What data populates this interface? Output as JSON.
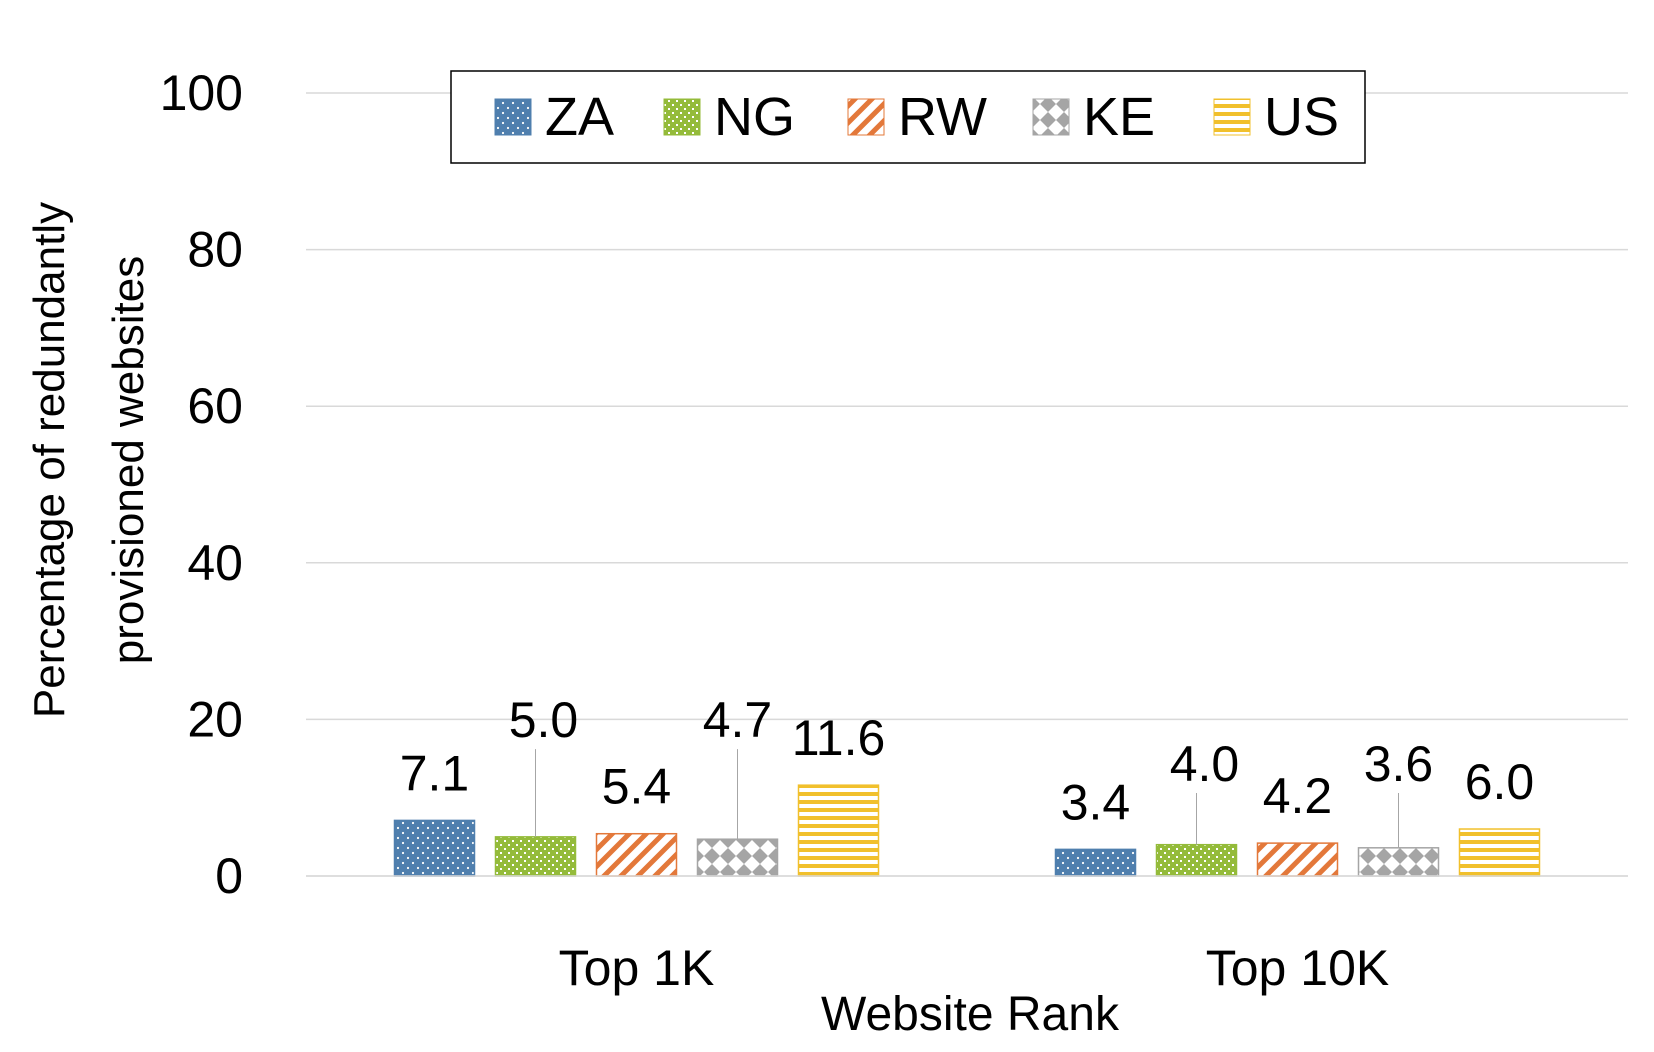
{
  "chart_data": {
    "type": "bar",
    "xlabel": "Website Rank",
    "ylabel_lines": [
      "Percentage of redundantly",
      "provisioned websites"
    ],
    "ylim": [
      0,
      100
    ],
    "yticks": [
      0,
      20,
      40,
      60,
      80,
      100
    ],
    "grid": true,
    "legend_position": "top-center",
    "categories": [
      "Top 1K",
      "Top 10K"
    ],
    "series": [
      {
        "name": "ZA",
        "values": [
          7.1,
          3.4
        ],
        "value_labels": [
          "7.1",
          "3.4"
        ],
        "color": "#4f7fae",
        "pattern": "dots"
      },
      {
        "name": "NG",
        "values": [
          5.0,
          4.0
        ],
        "value_labels": [
          "5.0",
          "4.0"
        ],
        "color": "#94bb3a",
        "pattern": "checker"
      },
      {
        "name": "RW",
        "values": [
          5.4,
          4.2
        ],
        "value_labels": [
          "5.4",
          "4.2"
        ],
        "color": "#e3783a",
        "pattern": "diagonal"
      },
      {
        "name": "KE",
        "values": [
          4.7,
          3.6
        ],
        "value_labels": [
          "4.7",
          "3.6"
        ],
        "color": "#a5a5a5",
        "pattern": "diamonds"
      },
      {
        "name": "US",
        "values": [
          11.6,
          6.0
        ],
        "value_labels": [
          "11.6",
          "6.0"
        ],
        "color": "#f1c02c",
        "pattern": "horizontal"
      }
    ]
  }
}
